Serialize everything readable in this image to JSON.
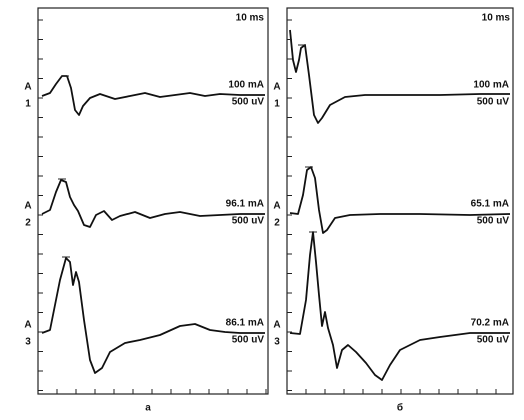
{
  "panels": [
    {
      "label": "а",
      "time_scale": "10 ms",
      "traces": [
        {
          "channel_letter": "A",
          "channel": "1",
          "stimulus": "100 mA",
          "amplitude_scale": "500 uV"
        },
        {
          "channel_letter": "A",
          "channel": "2",
          "stimulus": "96.1 mA",
          "amplitude_scale": "500 uV"
        },
        {
          "channel_letter": "A",
          "channel": "3",
          "stimulus": "86.1 mA",
          "amplitude_scale": "500 uV"
        }
      ]
    },
    {
      "label": "б",
      "time_scale": "10 ms",
      "traces": [
        {
          "channel_letter": "A",
          "channel": "1",
          "stimulus": "100 mA",
          "amplitude_scale": "500 uV"
        },
        {
          "channel_letter": "A",
          "channel": "2",
          "stimulus": "65.1 mA",
          "amplitude_scale": "500 uV"
        },
        {
          "channel_letter": "A",
          "channel": "3",
          "stimulus": "70.2 mA",
          "amplitude_scale": "500 uV"
        }
      ]
    }
  ]
}
